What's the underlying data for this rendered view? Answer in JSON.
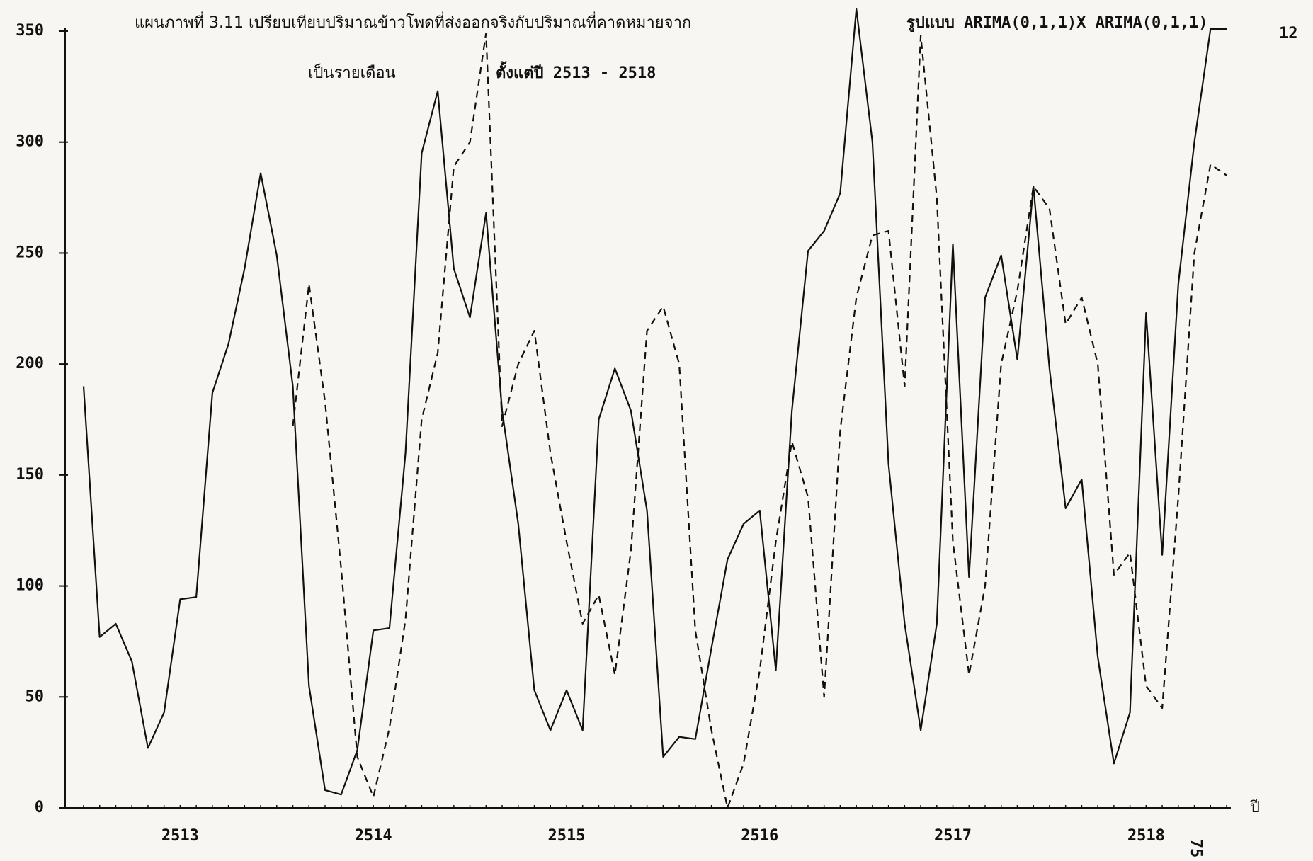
{
  "chart_data": {
    "type": "line",
    "title": "แผนภาพที่  3.11  เปรียบเทียบปริมาณข้าวโพดที่ส่งออกจริงกับปริมาณที่คาดหมายจาก",
    "model_label": "รูปแบบ ARIMA(0,1,1)X ARIMA(0,1,1)",
    "model_subscript": "12",
    "subtitle": "เป็นรายเดือน",
    "period_label": "ตั้งแต่ปี  2513 - 2518",
    "x_label": "ปี",
    "page_number": "75",
    "categories": [
      null,
      null,
      null,
      null,
      null,
      null,
      "2513",
      null,
      null,
      null,
      null,
      null,
      null,
      null,
      null,
      null,
      null,
      null,
      "2514",
      null,
      null,
      null,
      null,
      null,
      null,
      null,
      null,
      null,
      null,
      null,
      "2515",
      null,
      null,
      null,
      null,
      null,
      null,
      null,
      null,
      null,
      null,
      null,
      "2516",
      null,
      null,
      null,
      null,
      null,
      null,
      null,
      null,
      null,
      null,
      null,
      "2517",
      null,
      null,
      null,
      null,
      null,
      null,
      null,
      null,
      null,
      null,
      null,
      "2518",
      null,
      null,
      null,
      null,
      null
    ],
    "series": [
      {
        "color": "#111111",
        "line_style": "solid",
        "values": [
          190,
          77,
          83,
          66,
          27,
          43,
          94,
          95,
          187,
          209,
          243,
          286,
          249,
          190,
          55,
          8,
          6,
          26,
          80,
          81,
          160,
          295,
          323,
          243,
          221,
          268,
          179,
          128,
          53,
          35,
          53,
          35,
          175,
          198,
          179,
          134,
          23,
          32,
          31,
          72,
          112,
          128,
          134,
          62,
          179,
          251,
          260,
          277,
          360,
          300,
          155,
          83,
          35,
          83,
          254,
          104,
          230,
          249,
          202,
          280,
          198,
          135,
          148,
          68,
          20,
          43,
          223,
          114,
          236,
          300,
          351,
          351
        ]
      },
      {
        "color": "#111111",
        "line_style": "dashed",
        "values": [
          null,
          null,
          null,
          null,
          null,
          null,
          null,
          null,
          null,
          null,
          null,
          null,
          null,
          172,
          236,
          183,
          108,
          23,
          5,
          36,
          85,
          175,
          205,
          289,
          300,
          349,
          172,
          200,
          215,
          160,
          120,
          83,
          96,
          60,
          116,
          215,
          226,
          200,
          80,
          35,
          0,
          20,
          62,
          120,
          165,
          140,
          50,
          170,
          230,
          258,
          260,
          190,
          348,
          275,
          120,
          60,
          100,
          200,
          233,
          280,
          270,
          218,
          230,
          200,
          105,
          115,
          55,
          45,
          140,
          250,
          290,
          285
        ]
      }
    ],
    "ylim": [
      0,
      350
    ],
    "yticks": [
      0,
      50,
      100,
      150,
      200,
      250,
      300,
      350
    ],
    "grid": false
  }
}
